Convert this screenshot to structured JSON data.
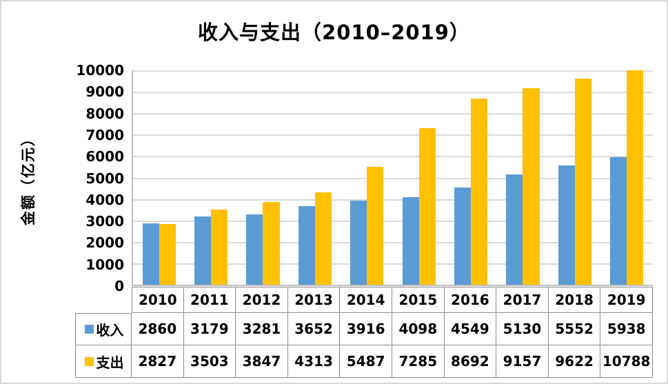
{
  "chart_data": {
    "type": "bar",
    "title": "收入与支出（2010–2019）",
    "ylabel": "金额（亿元）",
    "xlabel": "",
    "categories": [
      "2010",
      "2011",
      "2012",
      "2013",
      "2014",
      "2015",
      "2016",
      "2017",
      "2018",
      "2019"
    ],
    "series": [
      {
        "key": "income",
        "name": "收入",
        "color": "#5B9BD5",
        "values": [
          2860,
          3179,
          3281,
          3652,
          3916,
          4098,
          4549,
          5130,
          5552,
          5938
        ]
      },
      {
        "key": "expense",
        "name": "支出",
        "color": "#FFC000",
        "values": [
          2827,
          3503,
          3847,
          4313,
          5487,
          7285,
          8692,
          9157,
          9622,
          10788
        ]
      }
    ],
    "ylim": [
      0,
      10000
    ],
    "ytick_step": 1000,
    "yticks": [
      "10000",
      "9000",
      "8000",
      "7000",
      "6000",
      "5000",
      "4000",
      "3000",
      "2000",
      "1000",
      "0"
    ],
    "grid": "horizontal",
    "legend_position": "table-rows-left",
    "colors": {
      "gridline": "#D9D9D9",
      "axis": "#BFBFBF",
      "table_border": "#8C8C8C",
      "frame_border": "#D9D9D9",
      "text": "#000000",
      "background": "#FFFFFF"
    }
  }
}
